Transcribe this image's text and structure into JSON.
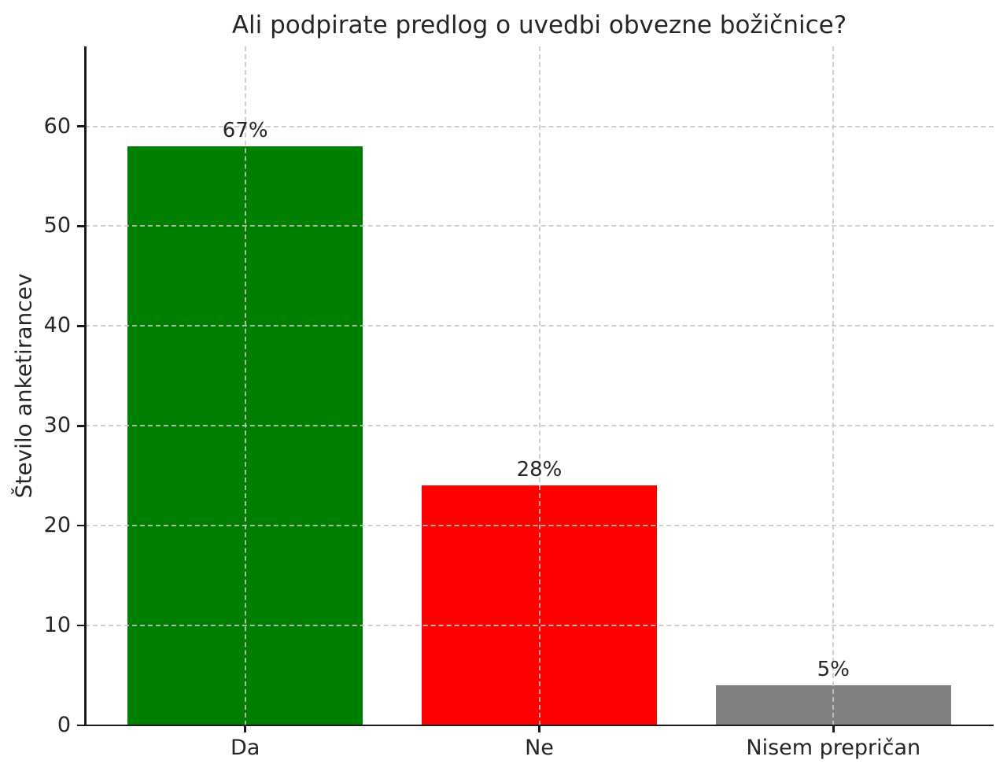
{
  "chart_data": {
    "type": "bar",
    "title": "Ali podpirate predlog o uvedbi obvezne božičnice?",
    "xlabel": "",
    "ylabel": "Število anketirancev",
    "categories": [
      "Da",
      "Ne",
      "Nisem prepričan"
    ],
    "values": [
      58,
      24,
      4
    ],
    "bar_labels": [
      "67%",
      "28%",
      "5%"
    ],
    "bar_colors": [
      "#008000",
      "#ff0000",
      "#808080"
    ],
    "yticks": [
      0,
      10,
      20,
      30,
      40,
      50,
      60
    ],
    "ylim": [
      0,
      68
    ],
    "bar_width_frac": 0.8,
    "xlim_pad": 0.545,
    "grid": {
      "on": true,
      "axes": "both",
      "linestyle": "dashed",
      "color": "#c8c8c8",
      "drawn_over_bars": true
    },
    "legend": null,
    "axis_color": "#1a1a1a",
    "text_color": "#262626",
    "background": "#ffffff"
  }
}
